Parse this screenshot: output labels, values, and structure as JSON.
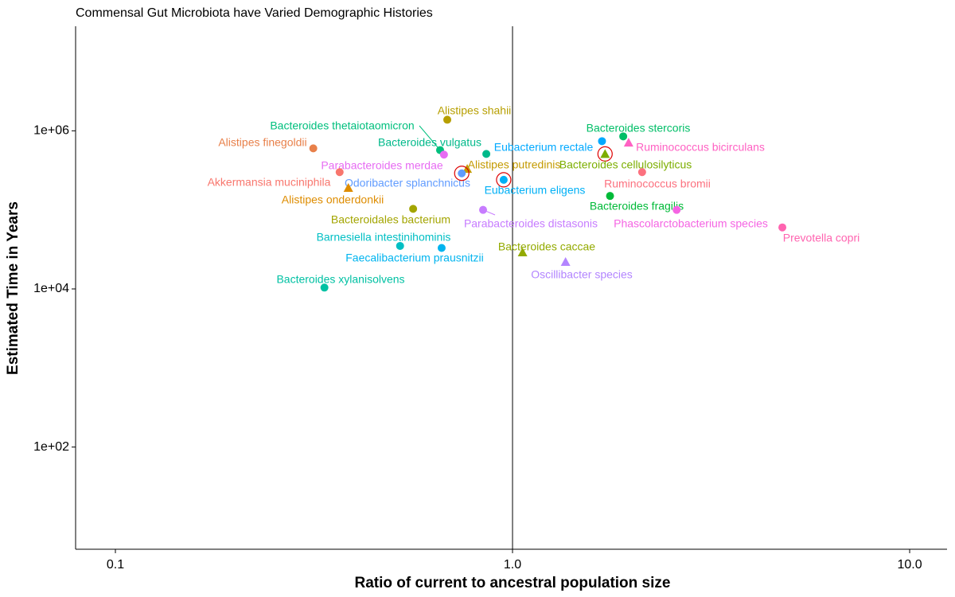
{
  "chart_data": {
    "type": "scatter",
    "title": "Commensal Gut Microbiota have Varied Demographic Histories",
    "x_label": "Ratio of current to ancestral population size",
    "y_label": "Estimated Time in Years",
    "xscale": "log",
    "yscale": "log",
    "grid": false,
    "vline": 1,
    "xlim": [
      0.0794,
      12.42
    ],
    "ylim": [
      5.1,
      21000000
    ],
    "xticks": [
      0.1,
      {
        "value": 1,
        "label": "1.0"
      },
      {
        "value": 10,
        "label": "10.0"
      }
    ],
    "yticks": [
      {
        "value": 100,
        "label": "1e+02"
      },
      {
        "value": 10000,
        "label": "1e+04"
      },
      {
        "value": 1000000,
        "label": "1e+06"
      }
    ],
    "points": [
      {
        "name": "Alistipes shahii",
        "x": 0.685,
        "y": 1380000,
        "color": "#b79f00",
        "shape": "circle",
        "circled": false
      },
      {
        "name": "Bacteroides thetaiotaomicron",
        "x": 0.657,
        "y": 570000,
        "color": "#00bf7d",
        "shape": "circle",
        "circled": false
      },
      {
        "name": "Alistipes finegoldii",
        "x": 0.315,
        "y": 600000,
        "color": "#e8804a",
        "shape": "circle",
        "circled": false
      },
      {
        "name": "Bacteroides vulgatus",
        "x": 0.859,
        "y": 510000,
        "color": "#00b98a",
        "shape": "circle",
        "circled": false
      },
      {
        "name": "Parabacteroides merdae",
        "x": 0.672,
        "y": 500000,
        "color": "#e76bf3",
        "shape": "circle",
        "circled": false
      },
      {
        "name": "Eubacterium rectale",
        "x": 1.68,
        "y": 740000,
        "color": "#00a9ff",
        "shape": "circle",
        "circled": false
      },
      {
        "name": "Bacteroides stercoris",
        "x": 1.9,
        "y": 850000,
        "color": "#00be67",
        "shape": "circle",
        "circled": false
      },
      {
        "name": "Ruminococcus bicirculans",
        "x": 1.96,
        "y": 710000,
        "color": "#ff61c3",
        "shape": "triangle",
        "circled": false
      },
      {
        "name": "Bacteroides cellulosilyticus",
        "x": 1.71,
        "y": 510000,
        "color": "#7cae00",
        "shape": "triangle",
        "circled": true
      },
      {
        "name": "Alistipes putredinis",
        "x": 0.769,
        "y": 330000,
        "color": "#c49a00",
        "shape": "triangle",
        "circled": false
      },
      {
        "name": "Odoribacter splanchnicus",
        "x": 0.745,
        "y": 290000,
        "color": "#619cff",
        "shape": "circle",
        "circled": true
      },
      {
        "name": "Akkermansia muciniphila",
        "x": 0.367,
        "y": 300000,
        "color": "#f8766d",
        "shape": "circle",
        "circled": false
      },
      {
        "name": "Eubacterium eligens",
        "x": 0.95,
        "y": 240000,
        "color": "#00b0f6",
        "shape": "circle",
        "circled": true
      },
      {
        "name": "Ruminococcus bromii",
        "x": 2.12,
        "y": 300000,
        "color": "#fc717f",
        "shape": "circle",
        "circled": false
      },
      {
        "name": "Alistipes onderdonkii",
        "x": 0.386,
        "y": 190000,
        "color": "#de8c00",
        "shape": "triangle",
        "circled": false
      },
      {
        "name": "Bacteroides fragilis",
        "x": 1.76,
        "y": 150000,
        "color": "#00ba38",
        "shape": "circle",
        "circled": false
      },
      {
        "name": "Bacteroidales bacterium",
        "x": 0.562,
        "y": 103000,
        "color": "#a3a500",
        "shape": "circle",
        "circled": false
      },
      {
        "name": "Parabacteroides distasonis",
        "x": 0.843,
        "y": 100000,
        "color": "#c77cff",
        "shape": "circle",
        "circled": false
      },
      {
        "name": "Phascolarctobacterium species",
        "x": 2.59,
        "y": 100000,
        "color": "#f564e3",
        "shape": "circle",
        "circled": false
      },
      {
        "name": "Prevotella copri",
        "x": 4.78,
        "y": 60000,
        "color": "#ff64b0",
        "shape": "circle",
        "circled": false
      },
      {
        "name": "Barnesiella intestinihominis",
        "x": 0.521,
        "y": 35000,
        "color": "#00bfc4",
        "shape": "circle",
        "circled": false
      },
      {
        "name": "Faecalibacterium prausnitzii",
        "x": 0.663,
        "y": 33000,
        "color": "#00b4ef",
        "shape": "circle",
        "circled": false
      },
      {
        "name": "Bacteroides caccae",
        "x": 1.06,
        "y": 29000,
        "color": "#93aa00",
        "shape": "triangle",
        "circled": false
      },
      {
        "name": "Oscillibacter species",
        "x": 1.36,
        "y": 22000,
        "color": "#b385ff",
        "shape": "triangle",
        "circled": false
      },
      {
        "name": "Bacteroides xylanisolvens",
        "x": 0.336,
        "y": 10400,
        "color": "#00c1a3",
        "shape": "circle",
        "circled": false
      }
    ]
  }
}
